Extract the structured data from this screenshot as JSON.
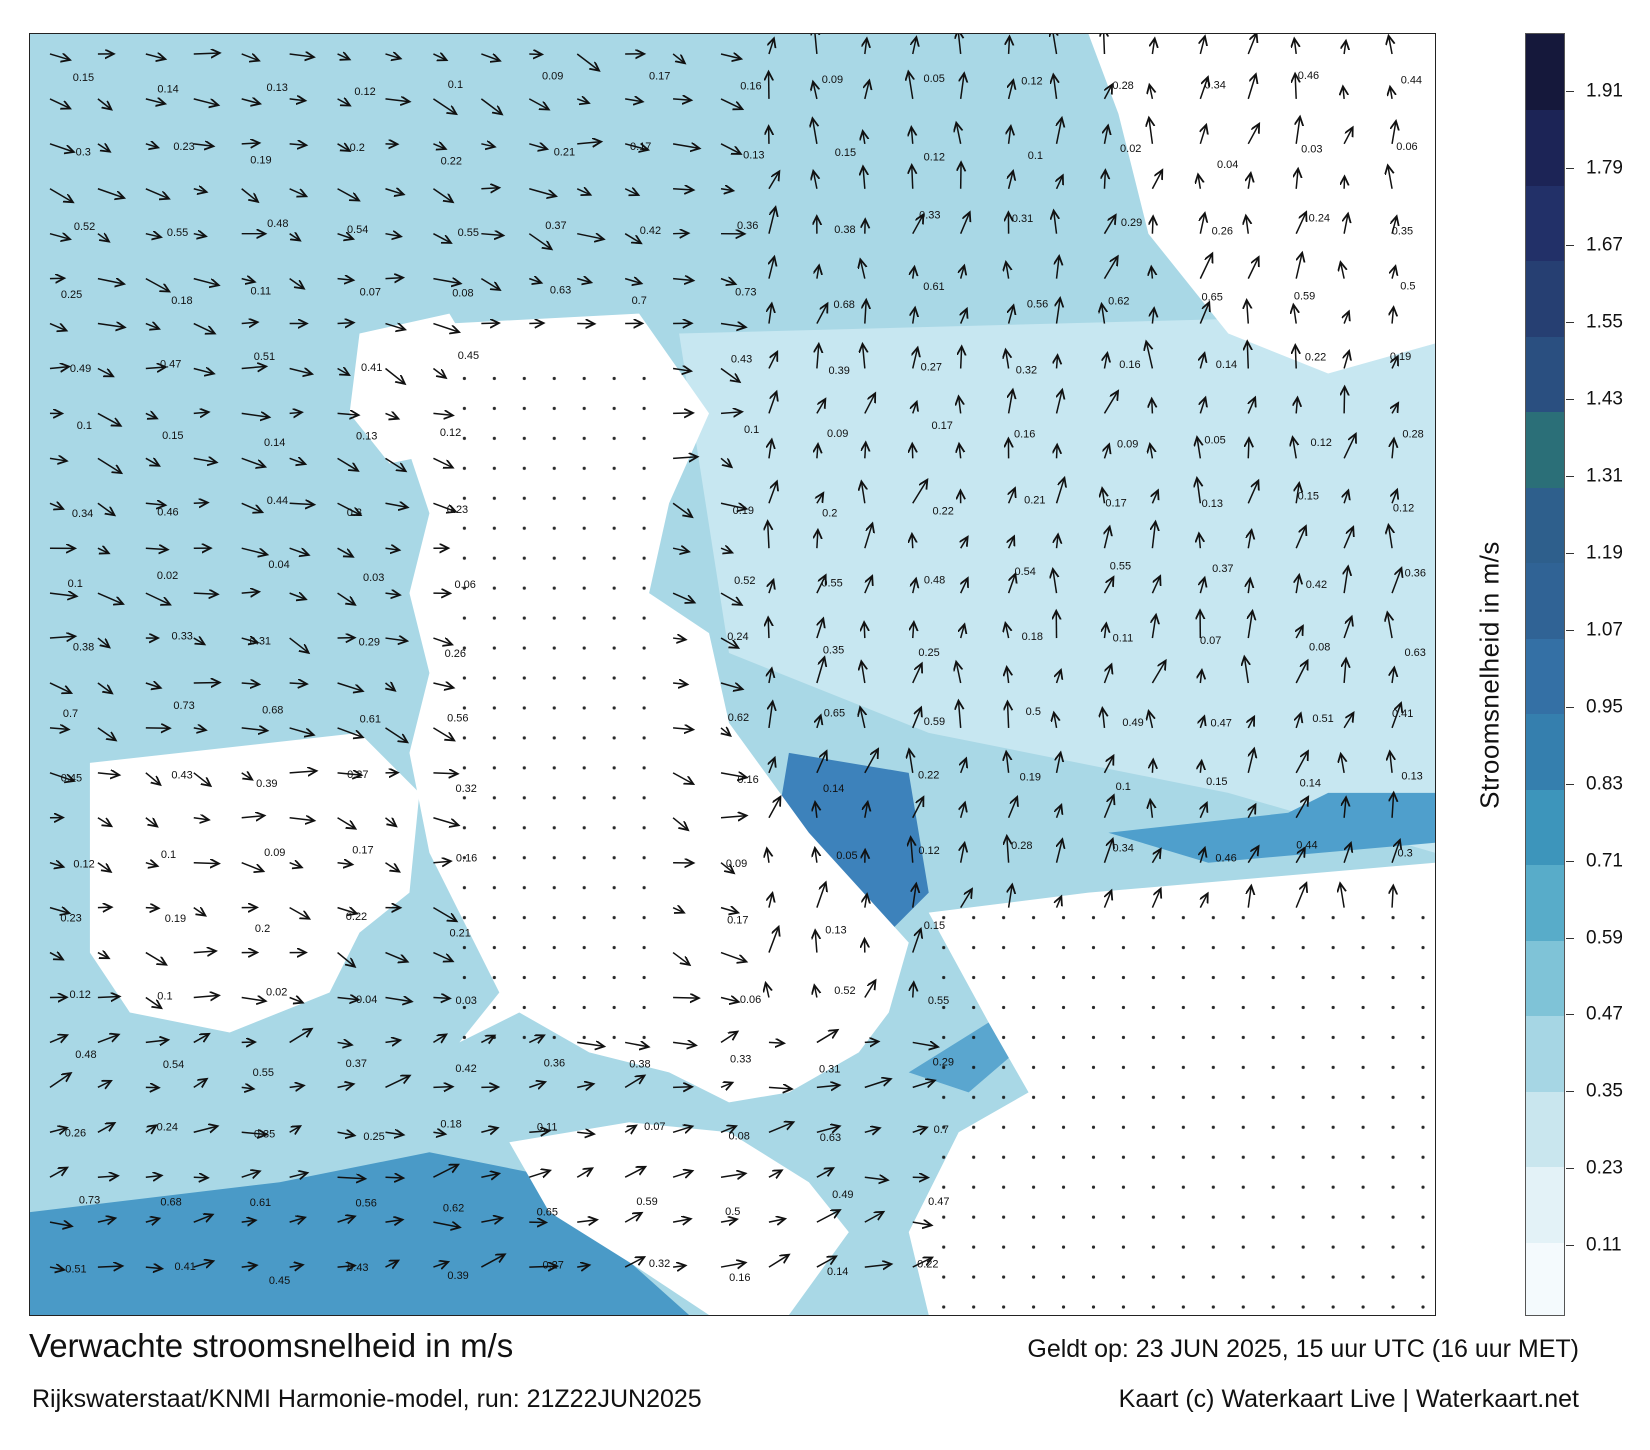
{
  "map": {
    "title": "Verwachte stroomsnelheid in m/s",
    "model_info": "Rijkswaterstaat/KNMI Harmonie-model, run: 21Z22JUN2025",
    "valid_time": "Geldt op: 23 JUN 2025, 15 uur UTC (16 uur MET)",
    "credit": "Kaart (c) Waterkaart Live | Waterkaart.net",
    "land_color": "#ffffff",
    "sample_labels": [
      "0.15",
      "0.14",
      "0.13",
      "0.12",
      "0.1",
      "0.09",
      "0.17",
      "0.16",
      "0.09",
      "0.05",
      "0.12",
      "0.28",
      "0.34",
      "0.46",
      "0.44",
      "0.3",
      "0.23",
      "0.19",
      "0.2",
      "0.22",
      "0.21",
      "0.17",
      "0.13",
      "0.15",
      "0.12",
      "0.1",
      "0.02",
      "0.04",
      "0.03",
      "0.06",
      "0.52",
      "0.55",
      "0.48",
      "0.54",
      "0.55",
      "0.37",
      "0.42",
      "0.36",
      "0.38",
      "0.33",
      "0.31",
      "0.29",
      "0.26",
      "0.24",
      "0.35",
      "0.25",
      "0.18",
      "0.11",
      "0.07",
      "0.08",
      "0.63",
      "0.7",
      "0.73",
      "0.68",
      "0.61",
      "0.56",
      "0.62",
      "0.65",
      "0.59",
      "0.5",
      "0.49",
      "0.47",
      "0.51",
      "0.41",
      "0.45",
      "0.43",
      "0.39",
      "0.27",
      "0.32",
      "0.16",
      "0.14",
      "0.22",
      "0.19",
      "0.1"
    ]
  },
  "colorbar": {
    "title": "Stroomsnelheid in m/s",
    "range": [
      0,
      2.0
    ],
    "ticks": [
      "1.91",
      "1.79",
      "1.67",
      "1.55",
      "1.43",
      "1.31",
      "1.19",
      "1.07",
      "0.95",
      "0.83",
      "0.71",
      "0.59",
      "0.47",
      "0.35",
      "0.23",
      "0.11"
    ],
    "colors": [
      "#f4fafd",
      "#e3f2f7",
      "#c9e6ee",
      "#a6d6e4",
      "#7fc3d7",
      "#58acc9",
      "#3d95bb",
      "#357fae",
      "#3470a5",
      "#306395",
      "#2e5f8c",
      "#2b6f78",
      "#2a4f80",
      "#263f72",
      "#223068",
      "#1c2456",
      "#15183b"
    ]
  }
}
